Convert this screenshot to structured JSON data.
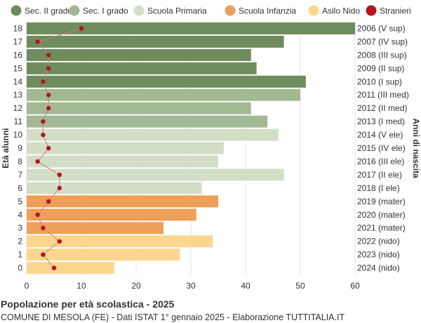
{
  "chart_data": {
    "type": "bar",
    "orientation": "horizontal",
    "title": "Popolazione per età scolastica - 2025",
    "subtitle": "COMUNE DI MESOLA (FE) - Dati ISTAT 1° gennaio 2025 - Elaborazione TUTTITALIA.IT",
    "ylabel_left": "Età alunni",
    "ylabel_right": "Anni di nascita",
    "xlim": [
      0,
      60
    ],
    "xticks": [
      0,
      10,
      20,
      30,
      40,
      50,
      60
    ],
    "grid": true,
    "legend_position": "top",
    "legend": [
      {
        "name": "Sec. II grado",
        "color": "#6e8c5c",
        "marker": "circle"
      },
      {
        "name": "Sec. I grado",
        "color": "#a2b994",
        "marker": "circle"
      },
      {
        "name": "Scuola Primaria",
        "color": "#d3dec7",
        "marker": "circle"
      },
      {
        "name": "Scuola Infanzia",
        "color": "#ee9f58",
        "marker": "circle"
      },
      {
        "name": "Asilo Nido",
        "color": "#fcd68e",
        "marker": "circle"
      },
      {
        "name": "Stranieri",
        "color": "#b5141a",
        "marker": "circle"
      }
    ],
    "categories": [
      "18",
      "17",
      "16",
      "15",
      "14",
      "13",
      "12",
      "11",
      "10",
      "9",
      "8",
      "7",
      "6",
      "5",
      "4",
      "3",
      "2",
      "1",
      "0"
    ],
    "birth_years": [
      "2006 (V sup)",
      "2007 (IV sup)",
      "2008 (III sup)",
      "2009 (II sup)",
      "2010 (I sup)",
      "2011 (III med)",
      "2012 (II med)",
      "2013 (I med)",
      "2014 (V ele)",
      "2015 (IV ele)",
      "2016 (III ele)",
      "2017 (II ele)",
      "2018 (I ele)",
      "2019 (mater)",
      "2020 (mater)",
      "2021 (mater)",
      "2022 (nido)",
      "2023 (nido)",
      "2024 (nido)"
    ],
    "groups": [
      "Sec. II grado",
      "Sec. II grado",
      "Sec. II grado",
      "Sec. II grado",
      "Sec. II grado",
      "Sec. I grado",
      "Sec. I grado",
      "Sec. I grado",
      "Scuola Primaria",
      "Scuola Primaria",
      "Scuola Primaria",
      "Scuola Primaria",
      "Scuola Primaria",
      "Scuola Infanzia",
      "Scuola Infanzia",
      "Scuola Infanzia",
      "Asilo Nido",
      "Asilo Nido",
      "Asilo Nido"
    ],
    "series": [
      {
        "name": "Popolazione",
        "values": [
          60,
          47,
          41,
          42,
          51,
          50,
          41,
          44,
          46,
          36,
          35,
          47,
          32,
          35,
          31,
          25,
          34,
          28,
          16
        ]
      },
      {
        "name": "Stranieri",
        "values": [
          10,
          2,
          4,
          4,
          3,
          4,
          4,
          3,
          3,
          4,
          2,
          6,
          6,
          4,
          2,
          3,
          6,
          3,
          5
        ]
      }
    ]
  }
}
